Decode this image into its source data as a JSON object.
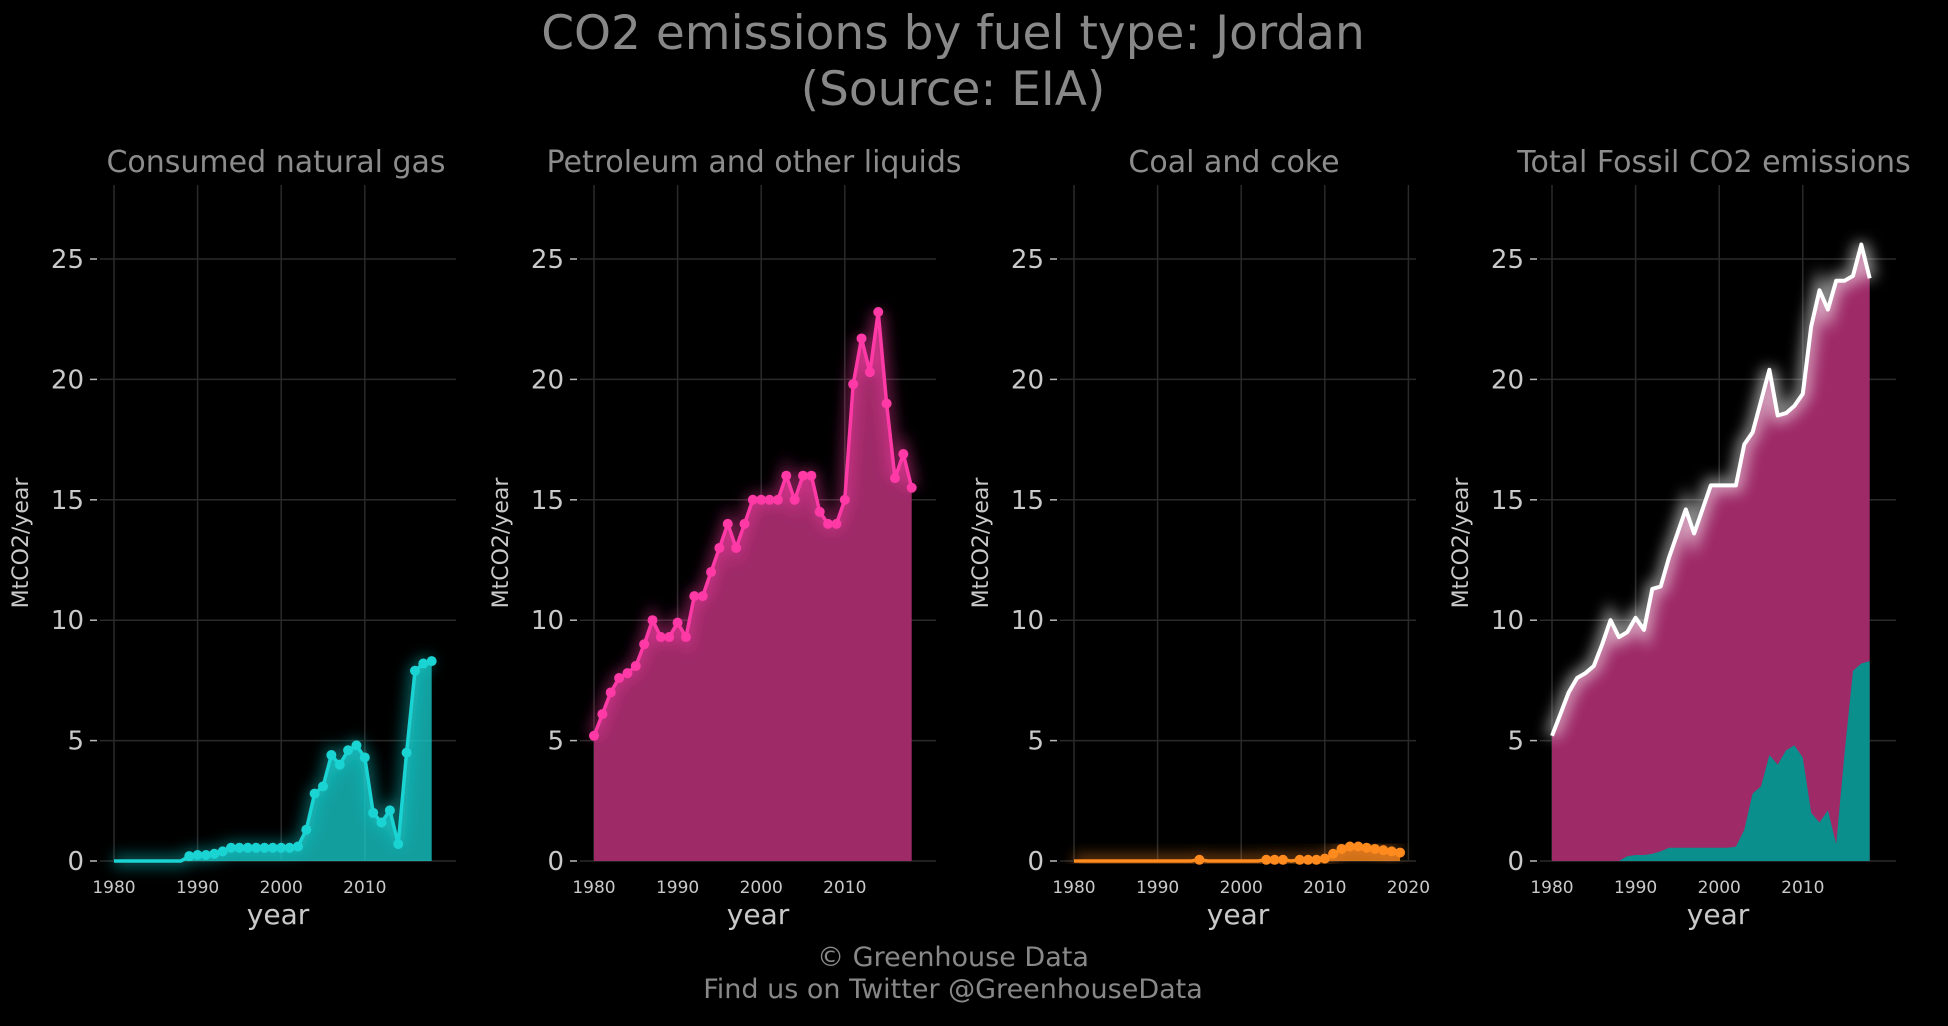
{
  "title_line1": "CO2 emissions by fuel type: Jordan",
  "title_line2": "(Source: EIA)",
  "footer_line1": "© Greenhouse Data",
  "footer_line2": "Find us on Twitter @GreenhouseData",
  "colors": {
    "gas": "#1ad3d3",
    "petroleum": "#ff3aa6",
    "petroleum_fill": "#9e2a68",
    "coal": "#ff8a1e",
    "total": "#ffffff",
    "gas_fill_total": "#0a8f8c",
    "grid": "#2a2a2a",
    "background": "#000000"
  },
  "chart_data": [
    {
      "type": "area",
      "title": "Consumed natural gas",
      "xlabel": "year",
      "ylabel": "MtCO2/year",
      "ylim": [
        0,
        28
      ],
      "yticks": [
        0,
        5,
        10,
        15,
        20,
        25
      ],
      "xticks": [
        1980,
        1990,
        2000,
        2010
      ],
      "xlim": [
        1980,
        2020
      ],
      "series": [
        {
          "x": [
            1980,
            1981,
            1982,
            1983,
            1984,
            1985,
            1986,
            1987,
            1988,
            1989,
            1990,
            1991,
            1992,
            1993,
            1994,
            1995,
            1996,
            1997,
            1998,
            1999,
            2000,
            2001,
            2002,
            2003,
            2004,
            2005,
            2006,
            2007,
            2008,
            2009,
            2010,
            2011,
            2012,
            2013,
            2014,
            2015,
            2016,
            2017,
            2018
          ],
          "values": [
            0,
            0,
            0,
            0,
            0,
            0,
            0,
            0,
            0,
            0.2,
            0.25,
            0.25,
            0.3,
            0.4,
            0.55,
            0.55,
            0.55,
            0.55,
            0.55,
            0.55,
            0.55,
            0.55,
            0.6,
            1.3,
            2.8,
            3.1,
            4.4,
            4.0,
            4.6,
            4.8,
            4.3,
            2.0,
            1.6,
            2.1,
            0.7,
            4.5,
            7.9,
            8.2,
            8.3
          ],
          "markers_from": 1989
        }
      ]
    },
    {
      "type": "area",
      "title": "Petroleum and other liquids",
      "xlabel": "year",
      "ylabel": "MtCO2/year",
      "ylim": [
        0,
        28
      ],
      "yticks": [
        0,
        5,
        10,
        15,
        20,
        25
      ],
      "xticks": [
        1980,
        1990,
        2000,
        2010
      ],
      "xlim": [
        1980,
        2020
      ],
      "series": [
        {
          "x": [
            1980,
            1981,
            1982,
            1983,
            1984,
            1985,
            1986,
            1987,
            1988,
            1989,
            1990,
            1991,
            1992,
            1993,
            1994,
            1995,
            1996,
            1997,
            1998,
            1999,
            2000,
            2001,
            2002,
            2003,
            2004,
            2005,
            2006,
            2007,
            2008,
            2009,
            2010,
            2011,
            2012,
            2013,
            2014,
            2015,
            2016,
            2017,
            2018
          ],
          "values": [
            5.2,
            6.1,
            7.0,
            7.6,
            7.8,
            8.1,
            9.0,
            10.0,
            9.3,
            9.3,
            9.9,
            9.3,
            11.0,
            11.0,
            12.0,
            13.0,
            14.0,
            13.0,
            14.0,
            15.0,
            15.0,
            15.0,
            15.0,
            16.0,
            15.0,
            16.0,
            16.0,
            14.5,
            14.0,
            14.0,
            15.0,
            19.8,
            21.7,
            20.3,
            22.8,
            19.0,
            15.9,
            16.9,
            15.5
          ],
          "markers_from": 1980
        }
      ]
    },
    {
      "type": "area",
      "title": "Coal and coke",
      "xlabel": "year",
      "ylabel": "MtCO2/year",
      "ylim": [
        0,
        28
      ],
      "yticks": [
        0,
        5,
        10,
        15,
        20,
        25
      ],
      "xticks": [
        1980,
        1990,
        2000,
        2010,
        2020
      ],
      "xlim": [
        1980,
        2020
      ],
      "series": [
        {
          "x": [
            1980,
            1981,
            1982,
            1983,
            1984,
            1985,
            1986,
            1987,
            1988,
            1989,
            1990,
            1991,
            1992,
            1993,
            1994,
            1995,
            1996,
            1997,
            1998,
            1999,
            2000,
            2001,
            2002,
            2003,
            2004,
            2005,
            2006,
            2007,
            2008,
            2009,
            2010,
            2011,
            2012,
            2013,
            2014,
            2015,
            2016,
            2017,
            2018,
            2019
          ],
          "values": [
            0,
            0,
            0,
            0,
            0,
            0,
            0,
            0,
            0,
            0,
            0,
            0,
            0,
            0,
            0,
            0.05,
            0,
            0,
            0,
            0,
            0,
            0,
            0,
            0.05,
            0.05,
            0.05,
            0,
            0.05,
            0.05,
            0.05,
            0.1,
            0.3,
            0.5,
            0.6,
            0.6,
            0.55,
            0.5,
            0.45,
            0.4,
            0.35
          ],
          "markers": [
            1995,
            2003,
            2004,
            2005,
            2007,
            2008,
            2009,
            2010,
            2011,
            2012,
            2013,
            2014,
            2015,
            2016,
            2017,
            2018,
            2019
          ]
        }
      ]
    },
    {
      "type": "area",
      "title": "Total Fossil CO2 emissions",
      "xlabel": "year",
      "ylabel": "MtCO2/year",
      "ylim": [
        0,
        28
      ],
      "yticks": [
        0,
        5,
        10,
        15,
        20,
        25
      ],
      "xticks": [
        1980,
        1990,
        2000,
        2010
      ],
      "xlim": [
        1980,
        2020
      ],
      "series": [
        {
          "name": "total",
          "x": [
            1980,
            1981,
            1982,
            1983,
            1984,
            1985,
            1986,
            1987,
            1988,
            1989,
            1990,
            1991,
            1992,
            1993,
            1994,
            1995,
            1996,
            1997,
            1998,
            1999,
            2000,
            2001,
            2002,
            2003,
            2004,
            2005,
            2006,
            2007,
            2008,
            2009,
            2010,
            2011,
            2012,
            2013,
            2014,
            2015,
            2016,
            2017,
            2018
          ],
          "values": [
            5.2,
            6.1,
            7.0,
            7.6,
            7.8,
            8.1,
            9.0,
            10.0,
            9.3,
            9.5,
            10.1,
            9.6,
            11.3,
            11.4,
            12.6,
            13.6,
            14.6,
            13.6,
            14.6,
            15.6,
            15.6,
            15.6,
            15.6,
            17.3,
            17.8,
            19.1,
            20.4,
            18.5,
            18.6,
            18.9,
            19.4,
            22.2,
            23.7,
            22.9,
            24.1,
            24.1,
            24.3,
            25.6,
            24.2
          ]
        }
      ]
    }
  ]
}
